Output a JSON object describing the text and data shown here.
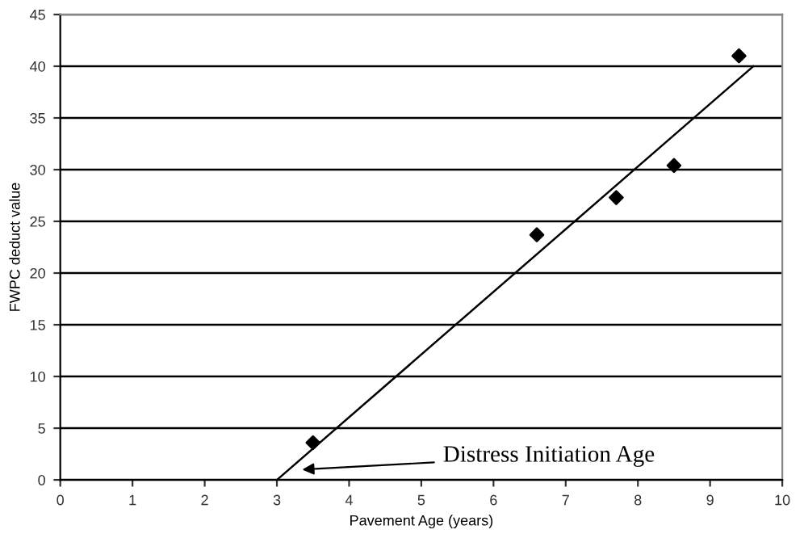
{
  "chart_data": {
    "type": "scatter",
    "xlabel": "Pavement Age (years)",
    "ylabel": "FWPC deduct value",
    "xlim": [
      0,
      10
    ],
    "ylim": [
      0,
      45
    ],
    "xticks": [
      0,
      1,
      2,
      3,
      4,
      5,
      6,
      7,
      8,
      9,
      10
    ],
    "yticks": [
      0,
      5,
      10,
      15,
      20,
      25,
      30,
      35,
      40,
      45
    ],
    "grid": "y",
    "marker": "diamond",
    "legend": false,
    "series": [
      {
        "color": "#000000",
        "x": [
          3.5,
          6.6,
          7.7,
          8.5,
          9.4
        ],
        "values": [
          3.6,
          23.7,
          27.3,
          30.4,
          41.0
        ]
      },
      {
        "type": "line",
        "color": "#000000",
        "marker": "none",
        "line_style": "solid",
        "x": [
          3.0,
          9.6
        ],
        "values": [
          0,
          40
        ]
      }
    ],
    "annotations": [
      {
        "text": "Distress Initiation Age",
        "x": 3.35,
        "y": 1.0
      }
    ]
  }
}
